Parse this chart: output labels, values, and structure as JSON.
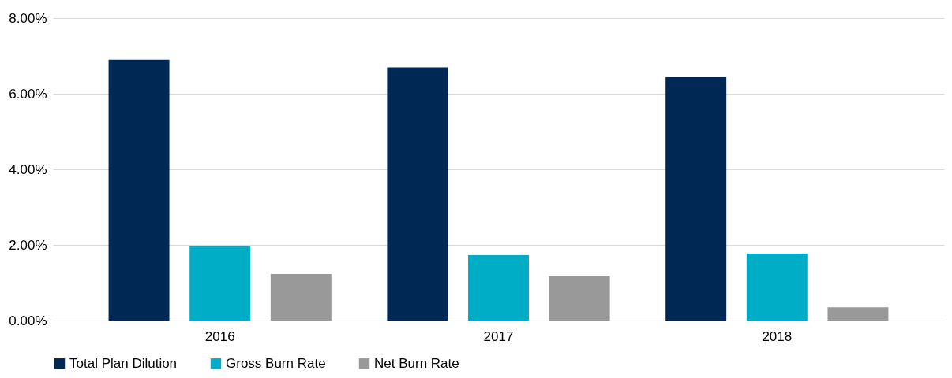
{
  "chart_data": {
    "type": "bar",
    "categories": [
      "2016",
      "2017",
      "2018"
    ],
    "series": [
      {
        "name": "Total Plan Dilution",
        "color": "#002855",
        "values": [
          6.9,
          6.7,
          6.44
        ]
      },
      {
        "name": "Gross Burn Rate",
        "color": "#00adc6",
        "values": [
          1.97,
          1.73,
          1.77
        ]
      },
      {
        "name": "Net Burn Rate",
        "color": "#999999",
        "values": [
          1.23,
          1.19,
          0.35
        ]
      }
    ],
    "ylim": [
      0,
      8
    ],
    "yticks": [
      {
        "value": 0,
        "label": "0.00%"
      },
      {
        "value": 2,
        "label": "2.00%"
      },
      {
        "value": 4,
        "label": "4.00%"
      },
      {
        "value": 6,
        "label": "6.00%"
      },
      {
        "value": 8,
        "label": "8.00%"
      }
    ],
    "grid": "y",
    "legend": "bottom"
  }
}
